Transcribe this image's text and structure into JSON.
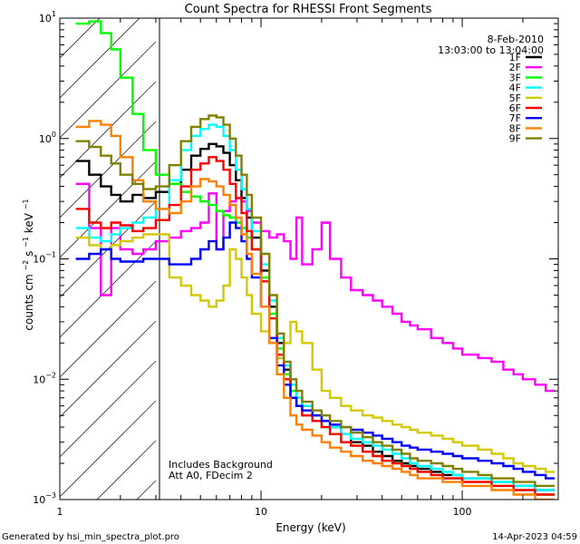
{
  "chart_data": {
    "type": "line",
    "title": "Count Spectra for RHESSI Front Segments",
    "xlabel": "Energy (keV)",
    "ylabel_main": "counts cm",
    "ylabel_sup1": "−2",
    "ylabel_mid": " s",
    "ylabel_sup2": "−1",
    "ylabel_end": " keV",
    "ylabel_sup3": "−1",
    "x_scale": "log",
    "y_scale": "log",
    "xlim": [
      1,
      300
    ],
    "ylim": [
      0.001,
      10
    ],
    "x_ticks": [
      {
        "value": 1,
        "label": "1"
      },
      {
        "value": 10,
        "label": "10"
      },
      {
        "value": 100,
        "label": "100"
      }
    ],
    "y_ticks": [
      {
        "value": 0.001,
        "base": "10",
        "exp": "−3"
      },
      {
        "value": 0.01,
        "base": "10",
        "exp": "−2"
      },
      {
        "value": 0.1,
        "base": "10",
        "exp": "−1"
      },
      {
        "value": 1,
        "base": "10",
        "exp": "0"
      },
      {
        "value": 10,
        "base": "10",
        "exp": "1"
      }
    ],
    "shaded_region": {
      "x_from": 1,
      "x_to": 3,
      "style": "hatched"
    },
    "date": "8-Feb-2010",
    "time_range": "13:03:00 to 13:04:00",
    "annotations": [
      "Includes Background",
      "Att A0, FDecim 2"
    ],
    "footer_left": "Generated by hsi_min_spectra_plot.pro",
    "footer_right": "14-Apr-2023 04:59",
    "series": [
      {
        "name": "1F",
        "color": "#000000",
        "x": [
          1.2,
          1.4,
          1.6,
          1.8,
          2.0,
          2.3,
          2.6,
          3.0,
          3.5,
          4.0,
          4.5,
          5.0,
          5.5,
          6.0,
          6.5,
          7.0,
          7.5,
          8.0,
          8.5,
          9.0,
          10,
          11,
          12,
          13,
          14,
          15,
          16,
          18,
          20,
          22,
          25,
          28,
          32,
          36,
          40,
          45,
          50,
          55,
          60,
          70,
          80,
          90,
          100,
          120,
          140,
          160,
          180,
          200,
          230,
          260
        ],
        "values": [
          0.65,
          0.5,
          0.4,
          0.34,
          0.3,
          0.34,
          0.32,
          0.36,
          0.42,
          0.55,
          0.72,
          0.82,
          0.9,
          0.86,
          0.76,
          0.6,
          0.45,
          0.32,
          0.22,
          0.15,
          0.08,
          0.04,
          0.02,
          0.012,
          0.009,
          0.007,
          0.006,
          0.005,
          0.0045,
          0.004,
          0.0035,
          0.003,
          0.0028,
          0.0025,
          0.0023,
          0.0021,
          0.002,
          0.0019,
          0.0018,
          0.0017,
          0.0016,
          0.0016,
          0.0015,
          0.0015,
          0.0014,
          0.0014,
          0.0013,
          0.0013,
          0.0012,
          0.0012
        ]
      },
      {
        "name": "2F",
        "color": "#ff00ff",
        "x": [
          1.2,
          1.4,
          1.6,
          1.8,
          2.0,
          2.3,
          2.6,
          3.0,
          3.5,
          4.0,
          4.5,
          5.0,
          5.5,
          6.0,
          6.5,
          7.0,
          7.5,
          8.0,
          8.5,
          9.0,
          10,
          11,
          12,
          13,
          14,
          15,
          16,
          18,
          20,
          22,
          25,
          28,
          32,
          36,
          40,
          45,
          50,
          55,
          60,
          70,
          80,
          90,
          100,
          120,
          140,
          160,
          180,
          200,
          230,
          260
        ],
        "values": [
          0.42,
          0.18,
          0.05,
          0.18,
          0.12,
          0.11,
          0.12,
          0.14,
          0.15,
          0.17,
          0.18,
          0.2,
          0.35,
          0.12,
          0.25,
          0.3,
          0.32,
          0.3,
          0.25,
          0.2,
          0.17,
          0.15,
          0.16,
          0.14,
          0.1,
          0.22,
          0.09,
          0.12,
          0.2,
          0.1,
          0.07,
          0.055,
          0.05,
          0.045,
          0.04,
          0.035,
          0.03,
          0.028,
          0.026,
          0.022,
          0.02,
          0.018,
          0.016,
          0.015,
          0.014,
          0.012,
          0.011,
          0.01,
          0.009,
          0.008
        ]
      },
      {
        "name": "3F",
        "color": "#00ff00",
        "x": [
          1.2,
          1.4,
          1.6,
          1.8,
          2.0,
          2.3,
          2.6,
          3.0,
          3.5,
          4.0,
          4.5,
          5.0,
          5.5,
          6.0,
          6.5,
          7.0,
          7.5,
          8.0,
          8.5,
          9.0,
          10,
          11,
          12,
          13,
          14,
          15,
          16,
          18,
          20,
          22,
          25,
          28,
          32,
          36,
          40,
          45,
          50,
          55,
          60,
          70,
          80,
          90,
          100,
          120,
          140,
          160,
          180,
          200,
          230,
          260
        ],
        "values": [
          9.0,
          9.4,
          7.5,
          5.5,
          3.2,
          1.6,
          0.8,
          0.5,
          0.42,
          0.36,
          0.33,
          0.3,
          0.28,
          0.25,
          0.23,
          0.22,
          0.2,
          0.18,
          0.15,
          0.12,
          0.07,
          0.035,
          0.018,
          0.011,
          0.008,
          0.006,
          0.005,
          0.0045,
          0.004,
          0.0035,
          0.003,
          0.0028,
          0.0025,
          0.0023,
          0.0021,
          0.002,
          0.0019,
          0.0018,
          0.0017,
          0.0016,
          0.0015,
          0.0015,
          0.0014,
          0.0014,
          0.0013,
          0.0013,
          0.0012,
          0.0012,
          0.0011,
          0.0011
        ]
      },
      {
        "name": "4F",
        "color": "#00ffff",
        "x": [
          1.2,
          1.4,
          1.6,
          1.8,
          2.0,
          2.3,
          2.6,
          3.0,
          3.5,
          4.0,
          4.5,
          5.0,
          5.5,
          6.0,
          6.5,
          7.0,
          7.5,
          8.0,
          8.5,
          9.0,
          10,
          11,
          12,
          13,
          14,
          15,
          16,
          18,
          20,
          22,
          25,
          28,
          32,
          36,
          40,
          45,
          50,
          55,
          60,
          70,
          80,
          90,
          100,
          120,
          140,
          160,
          180,
          200,
          230,
          260
        ],
        "values": [
          0.18,
          0.15,
          0.14,
          0.16,
          0.18,
          0.2,
          0.22,
          0.26,
          0.45,
          0.8,
          1.05,
          1.2,
          1.3,
          1.25,
          1.05,
          0.8,
          0.55,
          0.38,
          0.26,
          0.17,
          0.09,
          0.045,
          0.022,
          0.013,
          0.009,
          0.007,
          0.006,
          0.005,
          0.0045,
          0.004,
          0.0035,
          0.0032,
          0.003,
          0.0028,
          0.0026,
          0.0024,
          0.0022,
          0.002,
          0.0019,
          0.0018,
          0.0017,
          0.0016,
          0.0015,
          0.0015,
          0.0014,
          0.0014,
          0.0013,
          0.0013,
          0.0012,
          0.0012
        ]
      },
      {
        "name": "5F",
        "color": "#d4c800",
        "x": [
          1.2,
          1.4,
          1.6,
          1.8,
          2.0,
          2.3,
          2.6,
          3.0,
          3.5,
          4.0,
          4.5,
          5.0,
          5.5,
          6.0,
          6.5,
          7.0,
          7.5,
          8.0,
          8.5,
          9.0,
          10,
          11,
          12,
          13,
          14,
          15,
          16,
          18,
          20,
          22,
          25,
          28,
          32,
          36,
          40,
          45,
          50,
          55,
          60,
          70,
          80,
          90,
          100,
          120,
          140,
          160,
          180,
          200,
          230,
          260
        ],
        "values": [
          0.15,
          0.13,
          0.12,
          0.13,
          0.14,
          0.15,
          0.16,
          0.16,
          0.07,
          0.06,
          0.05,
          0.045,
          0.04,
          0.045,
          0.06,
          0.12,
          0.1,
          0.07,
          0.05,
          0.035,
          0.025,
          0.02,
          0.015,
          0.02,
          0.03,
          0.025,
          0.02,
          0.012,
          0.008,
          0.007,
          0.006,
          0.0055,
          0.005,
          0.0048,
          0.0045,
          0.0042,
          0.004,
          0.0038,
          0.0036,
          0.0034,
          0.0032,
          0.003,
          0.0028,
          0.0026,
          0.0024,
          0.0022,
          0.002,
          0.0019,
          0.0018,
          0.0017
        ]
      },
      {
        "name": "6F",
        "color": "#ff0000",
        "x": [
          1.2,
          1.4,
          1.6,
          1.8,
          2.0,
          2.3,
          2.6,
          3.0,
          3.5,
          4.0,
          4.5,
          5.0,
          5.5,
          6.0,
          6.5,
          7.0,
          7.5,
          8.0,
          8.5,
          9.0,
          10,
          11,
          12,
          13,
          14,
          15,
          16,
          18,
          20,
          22,
          25,
          28,
          32,
          36,
          40,
          45,
          50,
          55,
          60,
          70,
          80,
          90,
          100,
          120,
          140,
          160,
          180,
          200,
          230,
          260
        ],
        "values": [
          0.26,
          0.2,
          0.18,
          0.2,
          0.19,
          0.17,
          0.18,
          0.21,
          0.28,
          0.4,
          0.55,
          0.62,
          0.7,
          0.65,
          0.55,
          0.42,
          0.32,
          0.24,
          0.17,
          0.12,
          0.065,
          0.032,
          0.016,
          0.01,
          0.007,
          0.006,
          0.005,
          0.0045,
          0.004,
          0.0035,
          0.003,
          0.0028,
          0.0025,
          0.0023,
          0.0021,
          0.002,
          0.0019,
          0.0018,
          0.0017,
          0.0016,
          0.0015,
          0.0015,
          0.0014,
          0.0014,
          0.0013,
          0.0013,
          0.0012,
          0.0012,
          0.0011,
          0.0011
        ]
      },
      {
        "name": "7F",
        "color": "#0000ff",
        "x": [
          1.2,
          1.4,
          1.6,
          1.8,
          2.0,
          2.3,
          2.6,
          3.0,
          3.5,
          4.0,
          4.5,
          5.0,
          5.5,
          6.0,
          6.5,
          7.0,
          7.5,
          8.0,
          8.5,
          9.0,
          10,
          11,
          12,
          13,
          14,
          15,
          16,
          18,
          20,
          22,
          25,
          28,
          32,
          36,
          40,
          45,
          50,
          55,
          60,
          70,
          80,
          90,
          100,
          120,
          140,
          160,
          180,
          200,
          230,
          260
        ],
        "values": [
          0.1,
          0.11,
          0.12,
          0.1,
          0.095,
          0.095,
          0.1,
          0.1,
          0.09,
          0.09,
          0.1,
          0.12,
          0.14,
          0.12,
          0.15,
          0.2,
          0.18,
          0.14,
          0.1,
          0.07,
          0.04,
          0.022,
          0.013,
          0.009,
          0.007,
          0.006,
          0.0055,
          0.005,
          0.0045,
          0.0042,
          0.004,
          0.0038,
          0.0036,
          0.0034,
          0.0032,
          0.003,
          0.0028,
          0.0027,
          0.0026,
          0.0025,
          0.0024,
          0.0023,
          0.0022,
          0.0021,
          0.002,
          0.0019,
          0.0018,
          0.0017,
          0.0016,
          0.0015
        ]
      },
      {
        "name": "8F",
        "color": "#ff8000",
        "x": [
          1.2,
          1.4,
          1.6,
          1.8,
          2.0,
          2.3,
          2.6,
          3.0,
          3.5,
          4.0,
          4.5,
          5.0,
          5.5,
          6.0,
          6.5,
          7.0,
          7.5,
          8.0,
          8.5,
          9.0,
          10,
          11,
          12,
          13,
          14,
          15,
          16,
          18,
          20,
          22,
          25,
          28,
          32,
          36,
          40,
          45,
          50,
          55,
          60,
          70,
          80,
          90,
          100,
          120,
          140,
          160,
          180,
          200,
          230,
          260
        ],
        "values": [
          1.25,
          1.4,
          1.3,
          1.05,
          0.7,
          0.45,
          0.3,
          0.26,
          0.24,
          0.3,
          0.4,
          0.46,
          0.44,
          0.4,
          0.34,
          0.28,
          0.22,
          0.16,
          0.11,
          0.075,
          0.04,
          0.02,
          0.011,
          0.007,
          0.005,
          0.0042,
          0.0038,
          0.0034,
          0.003,
          0.0027,
          0.0025,
          0.0023,
          0.0021,
          0.002,
          0.0019,
          0.0018,
          0.0017,
          0.0016,
          0.0015,
          0.0015,
          0.0014,
          0.0014,
          0.0013,
          0.0013,
          0.0012,
          0.0012,
          0.0011,
          0.0011,
          0.001,
          0.001
        ]
      },
      {
        "name": "9F",
        "color": "#808000",
        "x": [
          1.2,
          1.4,
          1.6,
          1.8,
          2.0,
          2.3,
          2.6,
          3.0,
          3.5,
          4.0,
          4.5,
          5.0,
          5.5,
          6.0,
          6.5,
          7.0,
          7.5,
          8.0,
          8.5,
          9.0,
          10,
          11,
          12,
          13,
          14,
          15,
          16,
          18,
          20,
          22,
          25,
          28,
          32,
          36,
          40,
          45,
          50,
          55,
          60,
          70,
          80,
          90,
          100,
          120,
          140,
          160,
          180,
          200,
          230,
          260
        ],
        "values": [
          0.95,
          0.85,
          0.72,
          0.62,
          0.5,
          0.42,
          0.38,
          0.4,
          0.6,
          0.95,
          1.25,
          1.45,
          1.55,
          1.5,
          1.3,
          1.0,
          0.72,
          0.5,
          0.34,
          0.22,
          0.11,
          0.05,
          0.024,
          0.014,
          0.01,
          0.008,
          0.0065,
          0.0055,
          0.005,
          0.0045,
          0.004,
          0.0036,
          0.0033,
          0.003,
          0.0028,
          0.0026,
          0.0024,
          0.0022,
          0.0021,
          0.002,
          0.0019,
          0.0018,
          0.0017,
          0.0016,
          0.0015,
          0.0015,
          0.0014,
          0.0014,
          0.0013,
          0.0013
        ]
      }
    ]
  }
}
